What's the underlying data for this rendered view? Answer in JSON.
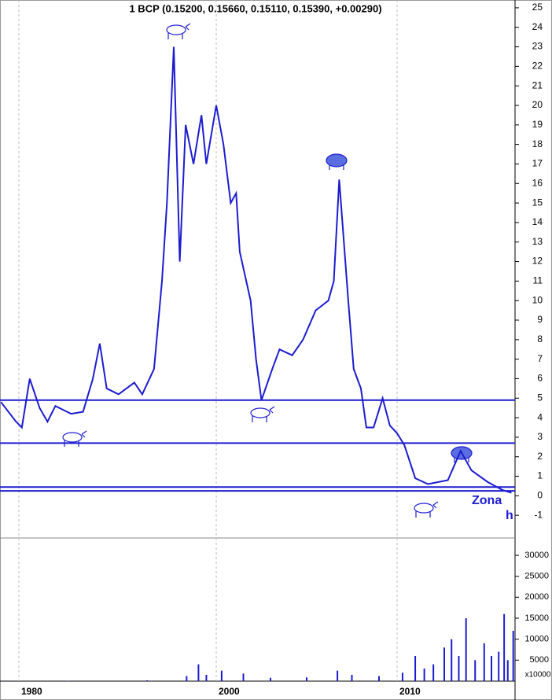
{
  "chart_data": [
    {
      "type": "line",
      "title": "1 BCP (0.15200, 0.15660, 0.15110, 0.15390, +0.00290)",
      "x": [
        1978.1,
        1979.7,
        1980.3,
        1981.1,
        1982.1,
        1982.9,
        1983.7,
        1985.3,
        1986.5,
        1987.5,
        1988.2,
        1988.9,
        1990.1,
        1991.7,
        1992.5,
        1993.7,
        1994.5,
        1995.0,
        1995.7,
        1996.3,
        1996.9,
        1997.7,
        1998.5,
        1999.0,
        2000.0,
        2000.4,
        2000.8,
        2001.1,
        2001.3,
        2001.9,
        2002.2,
        2002.5,
        2003.1,
        2003.5,
        2004.2,
        2004.8,
        2005.5,
        2006.2,
        2006.5,
        2006.8,
        2007.3,
        2007.6,
        2008.0,
        2008.3,
        2008.7,
        2009.2,
        2009.6,
        2010.0,
        2010.4,
        2011.0,
        2011.7,
        2012.8,
        2013.5,
        2014.1,
        2015.0,
        2015.8,
        2016.3
      ],
      "series": [
        {
          "name": "BCP",
          "color": "#1c1cd0",
          "values": [
            4.8,
            3.8,
            3.5,
            6.0,
            4.5,
            3.8,
            4.6,
            4.2,
            4.3,
            6.0,
            7.8,
            5.5,
            5.2,
            5.8,
            5.2,
            6.5,
            11,
            15,
            23,
            12,
            19,
            17,
            19.5,
            17,
            20,
            18,
            15,
            15.5,
            12.5,
            10,
            7,
            4.9,
            6.5,
            7.5,
            7.2,
            8,
            9.5,
            10,
            11,
            16.2,
            10,
            6.5,
            5.5,
            3.5,
            3.5,
            5.0,
            3.6,
            3.2,
            2.6,
            0.9,
            0.6,
            0.8,
            2.3,
            1.3,
            0.7,
            0.3,
            0.15
          ]
        }
      ],
      "hlines": [
        4.9,
        2.7,
        0.45,
        0.25
      ],
      "annotations": [
        "Zona",
        "h"
      ],
      "xlim": [
        1978,
        2016.5
      ],
      "ylim": [
        -2,
        25.4
      ],
      "yticks": [
        25,
        24,
        23,
        22,
        21,
        20,
        19,
        18,
        17,
        16,
        15,
        14,
        13,
        12,
        11,
        10,
        9,
        8,
        7,
        6,
        5,
        4,
        3,
        2,
        1,
        0,
        -1
      ],
      "grid": true
    },
    {
      "type": "bar",
      "unit_label": "x10000",
      "x": [
        1979,
        1985,
        1993,
        1997,
        1998.2,
        1999,
        2000.3,
        2001.5,
        2003,
        2005,
        2006.7,
        2007.5,
        2009,
        2010.3,
        2011,
        2011.5,
        2012,
        2012.6,
        2013,
        2013.4,
        2013.8,
        2014.3,
        2014.8,
        2015.2,
        2015.6,
        2015.9,
        2016.1,
        2016.4
      ],
      "series": [
        {
          "name": "Volume",
          "color": "#1c1cd0",
          "values": [
            50,
            100,
            200,
            1200,
            4000,
            1500,
            2500,
            1800,
            800,
            900,
            2500,
            1500,
            1200,
            2000,
            6000,
            3000,
            4000,
            8000,
            10000,
            6000,
            15000,
            5000,
            9000,
            6000,
            7000,
            16000,
            5000,
            12000
          ]
        }
      ],
      "xlim": [
        1978,
        2016.5
      ],
      "xticks": [
        1980,
        2000,
        2010
      ],
      "ylim": [
        0,
        33000
      ],
      "yticks": [
        30000,
        25000,
        20000,
        15000,
        10000,
        5000
      ]
    }
  ]
}
